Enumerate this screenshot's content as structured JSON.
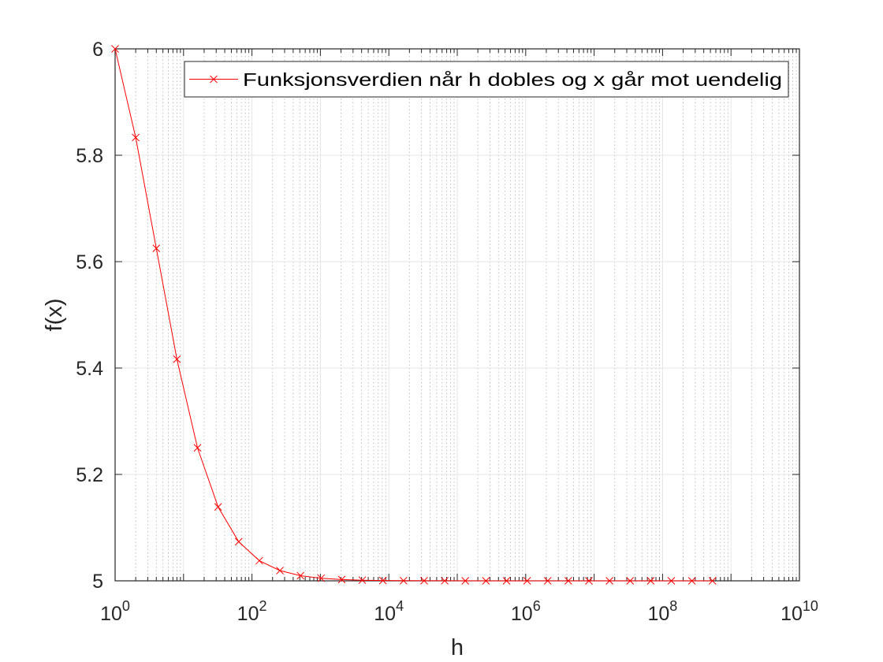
{
  "chart_data": {
    "type": "line",
    "title": "",
    "xlabel": "h",
    "ylabel": "f(x)",
    "xscale": "log",
    "xlim": [
      1,
      10000000000
    ],
    "ylim": [
      5,
      6
    ],
    "grid": true,
    "minor_grid": true,
    "legend_position": "top-right",
    "x_ticks": [
      {
        "value": 1,
        "base": "10",
        "exp": "0"
      },
      {
        "value": 100,
        "base": "10",
        "exp": "2"
      },
      {
        "value": 10000,
        "base": "10",
        "exp": "4"
      },
      {
        "value": 1000000,
        "base": "10",
        "exp": "6"
      },
      {
        "value": 100000000,
        "base": "10",
        "exp": "8"
      },
      {
        "value": 10000000000,
        "base": "10",
        "exp": "10"
      }
    ],
    "y_ticks": [
      {
        "value": 5,
        "label": "5"
      },
      {
        "value": 5.2,
        "label": "5.2"
      },
      {
        "value": 5.4,
        "label": "5.4"
      },
      {
        "value": 5.6,
        "label": "5.6"
      },
      {
        "value": 5.8,
        "label": "5.8"
      },
      {
        "value": 6,
        "label": "6"
      }
    ],
    "series": [
      {
        "name": "Funksjonsverdien når h dobles og x går mot uendelig",
        "color": "#ff0000",
        "marker": "x",
        "x": [
          1,
          2,
          4,
          8,
          16,
          32,
          64,
          128,
          256,
          512,
          1024,
          2048,
          4096,
          8192,
          16384,
          32768,
          65536,
          131072,
          262144,
          524288,
          1048576,
          2097152,
          4194304,
          8388608,
          16777216,
          33554432,
          67108864,
          134217728,
          268435456,
          536870912
        ],
        "y": [
          6,
          5.8333,
          5.625,
          5.4167,
          5.25,
          5.1389,
          5.0735,
          5.0379,
          5.0193,
          5.0097,
          5.0049,
          5.0024,
          5.0012,
          5.0006,
          5.0003,
          5.0002,
          5.0001,
          5.0,
          5.0,
          5.0,
          5.0,
          5.0,
          5.0,
          5.0,
          5.0,
          5.0,
          5.0,
          5.0,
          5.0,
          5.0
        ]
      }
    ]
  }
}
